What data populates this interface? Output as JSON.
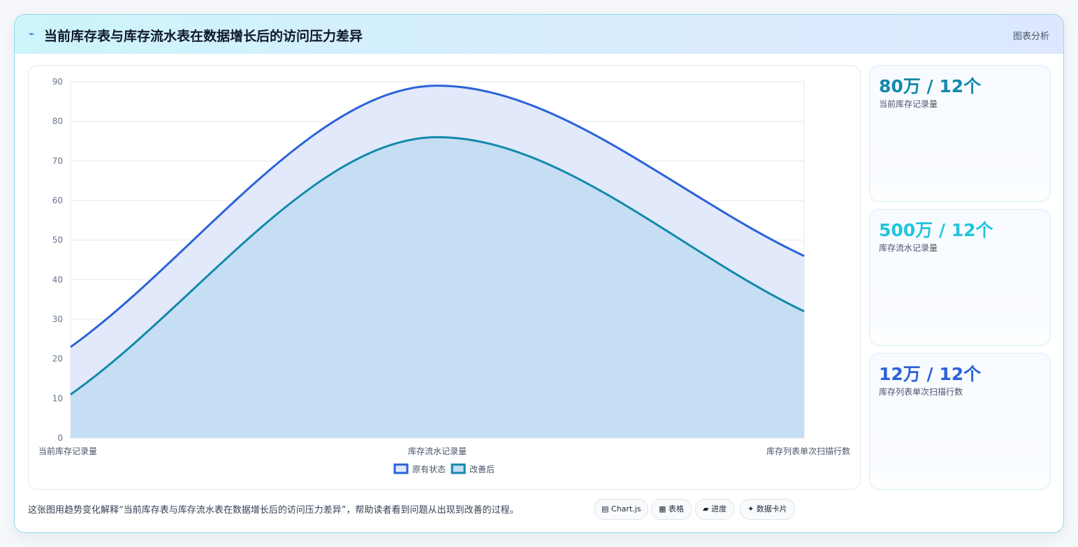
{
  "header": {
    "icon": "lightning-icon",
    "title": "当前库存表与库存流水表在数据增长后的访问压力差异",
    "link_label": "图表分析"
  },
  "colors": {
    "series_original": "#2b62d9",
    "series_improved": "#1389ab",
    "fill_original": "#dfe8fb",
    "fill_improved": "#c4ddf2",
    "stat_1": "#1389ab",
    "stat_2": "#21c5dd",
    "stat_3": "#2b62d9"
  },
  "stats": [
    {
      "value": "80万 / 12个",
      "label": "当前库存记录量"
    },
    {
      "value": "500万 / 12个",
      "label": "库存流水记录量"
    },
    {
      "value": "12万 / 12个",
      "label": "库存列表单次扫描行数"
    }
  ],
  "footer": {
    "description": "这张图用趋势变化解释“当前库存表与库存流水表在数据增长后的访问压力差异”，帮助读者看到问题从出现到改善的过程。",
    "pills": [
      {
        "icon": "chart-icon",
        "label": "Chart.js"
      },
      {
        "icon": "table-icon",
        "label": "表格"
      },
      {
        "icon": "progress-icon",
        "label": "进度"
      },
      {
        "icon": "sparkle-icon",
        "label": "数据卡片"
      }
    ]
  },
  "chart_data": {
    "type": "area",
    "categories": [
      "当前库存记录量",
      "库存流水记录量",
      "库存列表单次扫描行数"
    ],
    "ylim": [
      0,
      90
    ],
    "yticks": [
      0,
      10,
      20,
      30,
      40,
      50,
      60,
      70,
      80,
      90
    ],
    "grid": true,
    "legend": "bottom",
    "smooth": true,
    "series": [
      {
        "name": "原有状态",
        "values": [
          23,
          89,
          46
        ]
      },
      {
        "name": "改善后",
        "values": [
          11,
          76,
          32
        ]
      }
    ]
  }
}
